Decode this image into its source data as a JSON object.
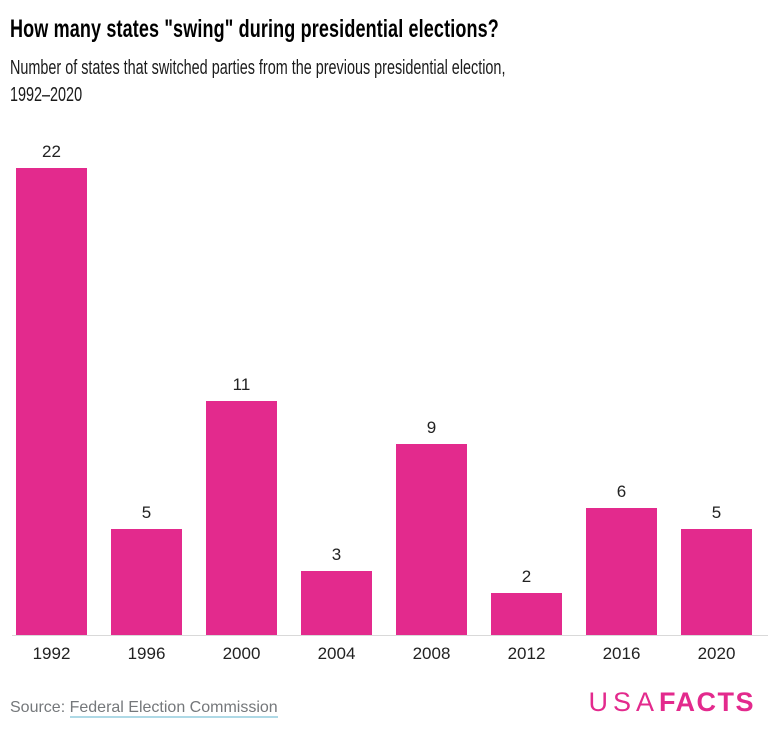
{
  "header": {
    "title": "How many states \"swing\" during presidential elections?",
    "subtitle_line1": "Number of states that switched parties from the previous presidential election,",
    "subtitle_line2": "1992–2020"
  },
  "chart_data": {
    "type": "bar",
    "categories": [
      "1992",
      "1996",
      "2000",
      "2004",
      "2008",
      "2012",
      "2016",
      "2020"
    ],
    "values": [
      22,
      5,
      11,
      3,
      9,
      2,
      6,
      5
    ],
    "title": "How many states \"swing\" during presidential elections?",
    "subtitle": "Number of states that switched parties from the previous presidential election, 1992–2020",
    "xlabel": "",
    "ylabel": "",
    "ylim": [
      0,
      22
    ],
    "grid": false,
    "legend": "none",
    "value_labels_shown": true,
    "bar_color": "#e32a8d"
  },
  "footer": {
    "source_label": "Source: ",
    "source_link": "Federal Election Commission",
    "logo_part1": "USA",
    "logo_part2": "FACTS"
  },
  "colors": {
    "bar": "#e32a8d",
    "axis_line": "#d9d9d9",
    "label_text": "#222222",
    "title_text": "#000000",
    "subtitle_text": "#1a1a1a",
    "source_text": "#75787b",
    "link_underline": "#aed9e6",
    "logo_pink": "#e32a8d"
  }
}
